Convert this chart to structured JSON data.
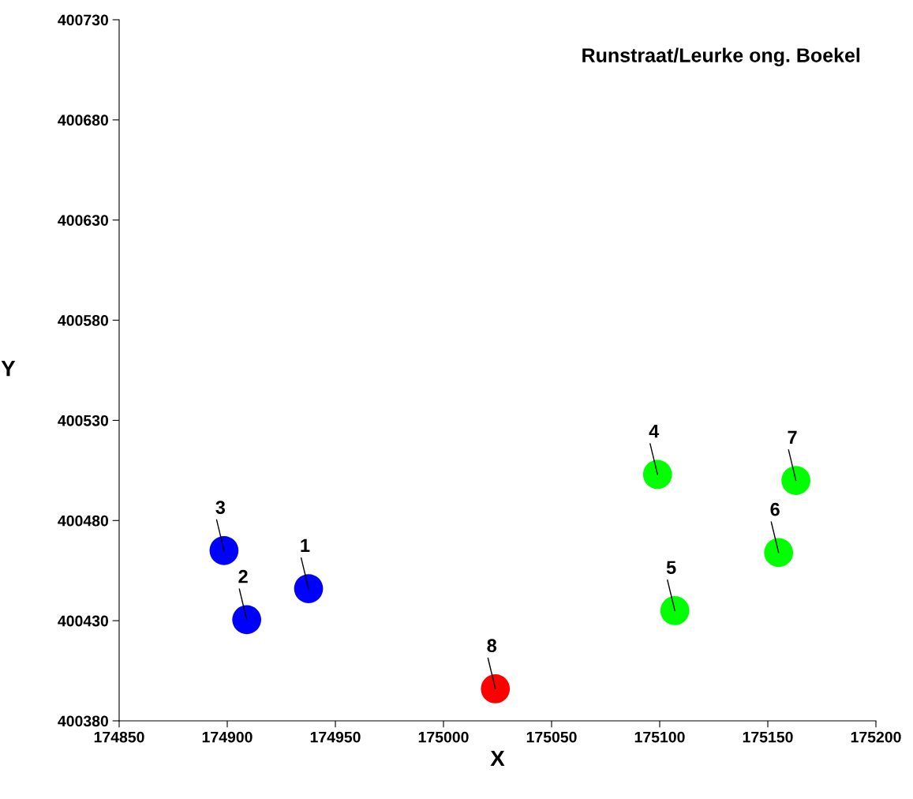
{
  "chart_data": {
    "type": "scatter",
    "title": "Runstraat/Leurke ong. Boekel",
    "xlabel": "X",
    "ylabel": "Y",
    "series": [
      {
        "color": "#0000ff",
        "x": [
          174937.6,
          174909,
          174898.5
        ],
        "values": [
          400446,
          400430.5,
          400465
        ]
      },
      {
        "color": "#00ff00",
        "x": [
          175099,
          175107,
          175155,
          175163
        ],
        "values": [
          400503,
          400435,
          400464,
          400500
        ]
      },
      {
        "color": "#ff0000",
        "x": [
          175024
        ],
        "values": [
          400396
        ]
      }
    ],
    "annotations": [
      {
        "text": "1",
        "x": 174937.6,
        "y": 400446
      },
      {
        "text": "2",
        "x": 174909,
        "y": 400430.5
      },
      {
        "text": "3",
        "x": 174898.5,
        "y": 400465
      },
      {
        "text": "4",
        "x": 175099,
        "y": 400503
      },
      {
        "text": "5",
        "x": 175107,
        "y": 400435
      },
      {
        "text": "6",
        "x": 175155,
        "y": 400464
      },
      {
        "text": "7",
        "x": 175163,
        "y": 400500
      },
      {
        "text": "8",
        "x": 175024,
        "y": 400396
      }
    ],
    "xlim": [
      174850,
      175200
    ],
    "xticks": [
      174850,
      174900,
      174950,
      175000,
      175050,
      175100,
      175150,
      175200
    ],
    "ylim": [
      400380,
      400730
    ],
    "yticks": [
      400380,
      400430,
      400480,
      400530,
      400580,
      400630,
      400680,
      400730
    ],
    "marker": "circle",
    "grid": false,
    "legend": false
  }
}
